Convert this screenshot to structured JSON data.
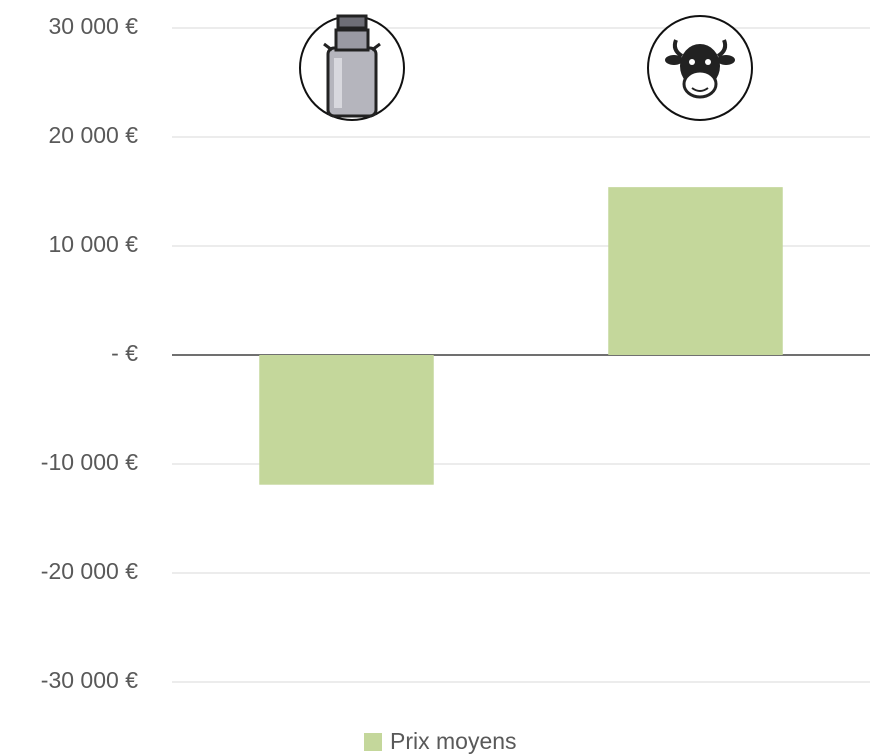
{
  "chart_data": {
    "type": "bar",
    "categories": [
      null,
      null
    ],
    "series": [
      {
        "name": "Prix moyens",
        "color": "#c4d79b",
        "values": [
          -11900,
          15400
        ]
      }
    ],
    "ylim": [
      -30000,
      30000
    ],
    "yticks": [
      {
        "value": -30000,
        "label": "-30 000 €"
      },
      {
        "value": -20000,
        "label": "-20 000 €"
      },
      {
        "value": -10000,
        "label": "-10 000 €"
      },
      {
        "value": 0,
        "label": "-   €"
      },
      {
        "value": 10000,
        "label": "10 000 €"
      },
      {
        "value": 20000,
        "label": "20 000 €"
      },
      {
        "value": 30000,
        "label": "30 000 €"
      }
    ],
    "grid": true,
    "legend": "bottom"
  }
}
